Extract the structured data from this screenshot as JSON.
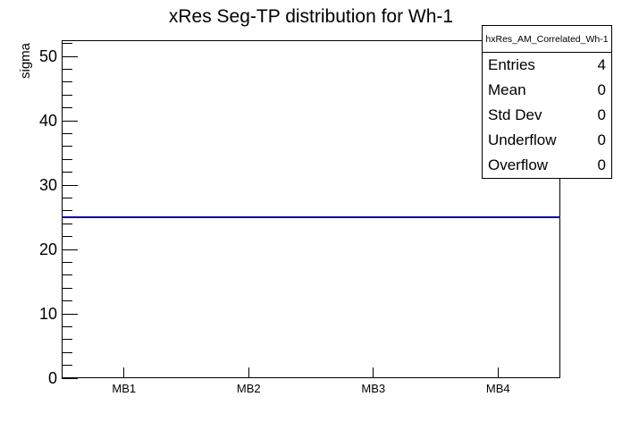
{
  "title": "xRes Seg-TP distribution for Wh-1",
  "chart_data": {
    "type": "line",
    "title": "xRes Seg-TP distribution for Wh-1",
    "xlabel": "",
    "ylabel": "sigma",
    "categories": [
      "MB1",
      "MB2",
      "MB3",
      "MB4"
    ],
    "values": [
      25,
      25,
      25,
      25
    ],
    "ylim": [
      0,
      52.5
    ],
    "y_major_ticks": [
      0,
      10,
      20,
      30,
      40,
      50
    ],
    "y_minor_tick_step": 2,
    "grid": false,
    "legend_position": "none",
    "line_color": "#000099",
    "frame_color": "#000000",
    "background_color": "#ffffff"
  },
  "stats": {
    "header": "hxRes_AM_Correlated_Wh-1",
    "rows": [
      {
        "label": "Entries",
        "value": "4"
      },
      {
        "label": "Mean",
        "value": "0"
      },
      {
        "label": "Std Dev",
        "value": "0"
      },
      {
        "label": "Underflow",
        "value": "0"
      },
      {
        "label": "Overflow",
        "value": "0"
      }
    ]
  }
}
